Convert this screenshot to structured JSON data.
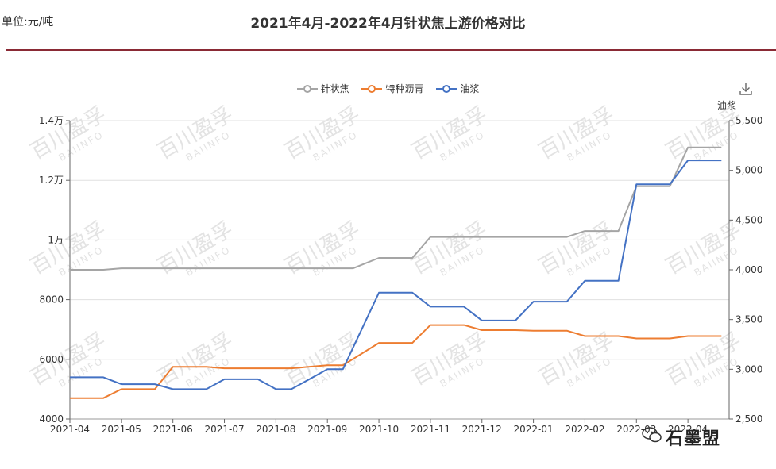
{
  "header": {
    "unit": "单位:元/吨",
    "title": "2021年4月-2022年4月针状焦上游价格对比"
  },
  "legend": {
    "items": [
      {
        "label": "针状焦",
        "color": "#a5a5a5"
      },
      {
        "label": "特种沥青",
        "color": "#ed7d31"
      },
      {
        "label": "油浆",
        "color": "#4472c4"
      }
    ]
  },
  "toolbar": {
    "download_icon": "download-icon"
  },
  "brand": {
    "text": "石墨盟"
  },
  "watermark": {
    "text": "百川盈孚",
    "sub": "BAIINFO"
  },
  "chart_data": {
    "type": "line",
    "x_ticks": [
      "2021-04",
      "2021-05",
      "2021-06",
      "2021-07",
      "2021-08",
      "2021-09",
      "2021-10",
      "2021-11",
      "2021-12",
      "2022-01",
      "2022-02",
      "2022-03",
      "2022-04"
    ],
    "x_tick_labels": [
      "2021-04",
      "2021-05",
      "2021-06",
      "2021-07",
      "2021-08",
      "2021-09",
      "2021-10",
      "2021-11",
      "2021-12",
      "2022-01",
      "2022-02",
      "2022-03",
      "2022-04"
    ],
    "x_range": [
      0,
      12.8
    ],
    "left_axis": {
      "ylim": [
        4000,
        14000
      ],
      "ticks": [
        4000,
        6000,
        8000,
        10000,
        12000,
        14000
      ],
      "tick_labels": [
        "4000",
        "6000",
        "8000",
        "1万",
        "1.2万",
        "1.4万"
      ]
    },
    "right_axis": {
      "name": "油浆",
      "ylim": [
        2500,
        5500
      ],
      "ticks": [
        2500,
        3000,
        3500,
        4000,
        4500,
        5000,
        5500
      ],
      "tick_labels": [
        "2,500",
        "3,000",
        "3,500",
        "4,000",
        "4,500",
        "5,000",
        "5,500"
      ]
    },
    "grid": true,
    "legend_position": "top-center",
    "series": [
      {
        "name": "针状焦",
        "axis": "left",
        "color": "#a5a5a5",
        "x": [
          0,
          0.65,
          1,
          2,
          3,
          4,
          5,
          5.5,
          6,
          6.65,
          7,
          7.65,
          8,
          9,
          9.65,
          10,
          10.65,
          11,
          11.65,
          12,
          12.65
        ],
        "y": [
          9000,
          9000,
          9050,
          9050,
          9050,
          9050,
          9050,
          9050,
          9400,
          9400,
          10100,
          10100,
          10100,
          10100,
          10100,
          10300,
          10300,
          11800,
          11800,
          13100,
          13100
        ]
      },
      {
        "name": "特种沥青",
        "axis": "left",
        "color": "#ed7d31",
        "x": [
          0,
          0.65,
          1,
          1.65,
          2,
          2.65,
          3,
          3.65,
          4,
          4.3,
          5,
          5.3,
          6,
          6.65,
          7,
          7.65,
          8,
          8.65,
          9,
          9.65,
          10,
          10.65,
          11,
          11.65,
          12,
          12.65
        ],
        "y": [
          4700,
          4700,
          5000,
          5000,
          5750,
          5750,
          5700,
          5700,
          5700,
          5700,
          5800,
          5800,
          6550,
          6550,
          7150,
          7150,
          6980,
          6980,
          6960,
          6960,
          6780,
          6780,
          6700,
          6700,
          6780,
          6780
        ]
      },
      {
        "name": "油浆",
        "axis": "right",
        "color": "#4472c4",
        "x": [
          0,
          0.65,
          1,
          1.65,
          2,
          2.65,
          3,
          3.65,
          4,
          4.3,
          5,
          5.3,
          6,
          6.65,
          7,
          7.65,
          8,
          8.65,
          9,
          9.65,
          10,
          10.65,
          11,
          11.65,
          12,
          12.65
        ],
        "y": [
          2920,
          2920,
          2850,
          2850,
          2800,
          2800,
          2900,
          2900,
          2800,
          2800,
          3000,
          3000,
          3770,
          3770,
          3630,
          3630,
          3490,
          3490,
          3680,
          3680,
          3890,
          3890,
          4860,
          4860,
          5100,
          5100
        ]
      }
    ]
  }
}
